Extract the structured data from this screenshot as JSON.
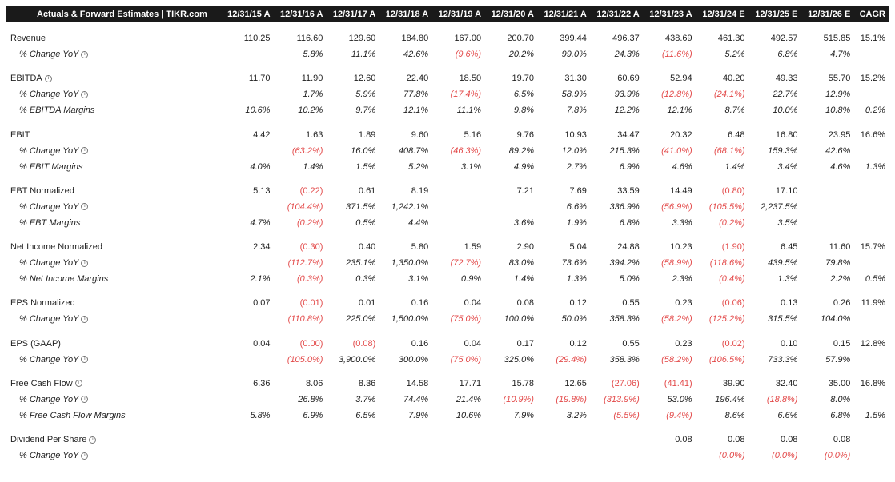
{
  "header": {
    "title": "Actuals & Forward Estimates | TIKR.com",
    "periods": [
      "12/31/15 A",
      "12/31/16 A",
      "12/31/17 A",
      "12/31/18 A",
      "12/31/19 A",
      "12/31/20 A",
      "12/31/21 A",
      "12/31/22 A",
      "12/31/23 A",
      "12/31/24 E",
      "12/31/25 E",
      "12/31/26 E"
    ],
    "cagr": "CAGR"
  },
  "rows": [
    {
      "label": "Revenue",
      "sub": false,
      "info": false,
      "groupStart": true,
      "values": [
        "110.25",
        "116.60",
        "129.60",
        "184.80",
        "167.00",
        "200.70",
        "399.44",
        "496.37",
        "438.69",
        "461.30",
        "492.57",
        "515.85"
      ],
      "cagr": "15.1%"
    },
    {
      "label": "% Change YoY",
      "sub": true,
      "info": true,
      "values": [
        "",
        "5.8%",
        "11.1%",
        "42.6%",
        "(9.6%)",
        "20.2%",
        "99.0%",
        "24.3%",
        "(11.6%)",
        "5.2%",
        "6.8%",
        "4.7%"
      ],
      "cagr": ""
    },
    {
      "label": "EBITDA",
      "sub": false,
      "info": true,
      "groupStart": true,
      "values": [
        "11.70",
        "11.90",
        "12.60",
        "22.40",
        "18.50",
        "19.70",
        "31.30",
        "60.69",
        "52.94",
        "40.20",
        "49.33",
        "55.70"
      ],
      "cagr": "15.2%"
    },
    {
      "label": "% Change YoY",
      "sub": true,
      "info": true,
      "values": [
        "",
        "1.7%",
        "5.9%",
        "77.8%",
        "(17.4%)",
        "6.5%",
        "58.9%",
        "93.9%",
        "(12.8%)",
        "(24.1%)",
        "22.7%",
        "12.9%"
      ],
      "cagr": ""
    },
    {
      "label": "% EBITDA Margins",
      "sub": true,
      "info": false,
      "values": [
        "10.6%",
        "10.2%",
        "9.7%",
        "12.1%",
        "11.1%",
        "9.8%",
        "7.8%",
        "12.2%",
        "12.1%",
        "8.7%",
        "10.0%",
        "10.8%"
      ],
      "cagr": "0.2%"
    },
    {
      "label": "EBIT",
      "sub": false,
      "info": false,
      "groupStart": true,
      "values": [
        "4.42",
        "1.63",
        "1.89",
        "9.60",
        "5.16",
        "9.76",
        "10.93",
        "34.47",
        "20.32",
        "6.48",
        "16.80",
        "23.95"
      ],
      "cagr": "16.6%"
    },
    {
      "label": "% Change YoY",
      "sub": true,
      "info": true,
      "values": [
        "",
        "(63.2%)",
        "16.0%",
        "408.7%",
        "(46.3%)",
        "89.2%",
        "12.0%",
        "215.3%",
        "(41.0%)",
        "(68.1%)",
        "159.3%",
        "42.6%"
      ],
      "cagr": ""
    },
    {
      "label": "% EBIT Margins",
      "sub": true,
      "info": false,
      "values": [
        "4.0%",
        "1.4%",
        "1.5%",
        "5.2%",
        "3.1%",
        "4.9%",
        "2.7%",
        "6.9%",
        "4.6%",
        "1.4%",
        "3.4%",
        "4.6%"
      ],
      "cagr": "1.3%"
    },
    {
      "label": "EBT Normalized",
      "sub": false,
      "info": false,
      "groupStart": true,
      "values": [
        "5.13",
        "(0.22)",
        "0.61",
        "8.19",
        "",
        "7.21",
        "7.69",
        "33.59",
        "14.49",
        "(0.80)",
        "17.10",
        ""
      ],
      "cagr": ""
    },
    {
      "label": "% Change YoY",
      "sub": true,
      "info": true,
      "values": [
        "",
        "(104.4%)",
        "371.5%",
        "1,242.1%",
        "",
        "",
        "6.6%",
        "336.9%",
        "(56.9%)",
        "(105.5%)",
        "2,237.5%",
        ""
      ],
      "cagr": ""
    },
    {
      "label": "% EBT Margins",
      "sub": true,
      "info": false,
      "values": [
        "4.7%",
        "(0.2%)",
        "0.5%",
        "4.4%",
        "",
        "3.6%",
        "1.9%",
        "6.8%",
        "3.3%",
        "(0.2%)",
        "3.5%",
        ""
      ],
      "cagr": ""
    },
    {
      "label": "Net Income Normalized",
      "sub": false,
      "info": false,
      "groupStart": true,
      "values": [
        "2.34",
        "(0.30)",
        "0.40",
        "5.80",
        "1.59",
        "2.90",
        "5.04",
        "24.88",
        "10.23",
        "(1.90)",
        "6.45",
        "11.60"
      ],
      "cagr": "15.7%"
    },
    {
      "label": "% Change YoY",
      "sub": true,
      "info": true,
      "values": [
        "",
        "(112.7%)",
        "235.1%",
        "1,350.0%",
        "(72.7%)",
        "83.0%",
        "73.6%",
        "394.2%",
        "(58.9%)",
        "(118.6%)",
        "439.5%",
        "79.8%"
      ],
      "cagr": ""
    },
    {
      "label": "% Net Income Margins",
      "sub": true,
      "info": false,
      "values": [
        "2.1%",
        "(0.3%)",
        "0.3%",
        "3.1%",
        "0.9%",
        "1.4%",
        "1.3%",
        "5.0%",
        "2.3%",
        "(0.4%)",
        "1.3%",
        "2.2%"
      ],
      "cagr": "0.5%"
    },
    {
      "label": "EPS Normalized",
      "sub": false,
      "info": false,
      "groupStart": true,
      "values": [
        "0.07",
        "(0.01)",
        "0.01",
        "0.16",
        "0.04",
        "0.08",
        "0.12",
        "0.55",
        "0.23",
        "(0.06)",
        "0.13",
        "0.26"
      ],
      "cagr": "11.9%"
    },
    {
      "label": "% Change YoY",
      "sub": true,
      "info": true,
      "values": [
        "",
        "(110.8%)",
        "225.0%",
        "1,500.0%",
        "(75.0%)",
        "100.0%",
        "50.0%",
        "358.3%",
        "(58.2%)",
        "(125.2%)",
        "315.5%",
        "104.0%"
      ],
      "cagr": ""
    },
    {
      "label": "EPS (GAAP)",
      "sub": false,
      "info": false,
      "groupStart": true,
      "values": [
        "0.04",
        "(0.00)",
        "(0.08)",
        "0.16",
        "0.04",
        "0.17",
        "0.12",
        "0.55",
        "0.23",
        "(0.02)",
        "0.10",
        "0.15"
      ],
      "cagr": "12.8%"
    },
    {
      "label": "% Change YoY",
      "sub": true,
      "info": true,
      "values": [
        "",
        "(105.0%)",
        "3,900.0%",
        "300.0%",
        "(75.0%)",
        "325.0%",
        "(29.4%)",
        "358.3%",
        "(58.2%)",
        "(106.5%)",
        "733.3%",
        "57.9%"
      ],
      "cagr": ""
    },
    {
      "label": "Free Cash Flow",
      "sub": false,
      "info": true,
      "groupStart": true,
      "values": [
        "6.36",
        "8.06",
        "8.36",
        "14.58",
        "17.71",
        "15.78",
        "12.65",
        "(27.06)",
        "(41.41)",
        "39.90",
        "32.40",
        "35.00"
      ],
      "cagr": "16.8%"
    },
    {
      "label": "% Change YoY",
      "sub": true,
      "info": true,
      "values": [
        "",
        "26.8%",
        "3.7%",
        "74.4%",
        "21.4%",
        "(10.9%)",
        "(19.8%)",
        "(313.9%)",
        "53.0%",
        "196.4%",
        "(18.8%)",
        "8.0%"
      ],
      "cagr": ""
    },
    {
      "label": "% Free Cash Flow Margins",
      "sub": true,
      "info": false,
      "values": [
        "5.8%",
        "6.9%",
        "6.5%",
        "7.9%",
        "10.6%",
        "7.9%",
        "3.2%",
        "(5.5%)",
        "(9.4%)",
        "8.6%",
        "6.6%",
        "6.8%"
      ],
      "cagr": "1.5%"
    },
    {
      "label": "Dividend Per Share",
      "sub": false,
      "info": true,
      "groupStart": true,
      "values": [
        "",
        "",
        "",
        "",
        "",
        "",
        "",
        "",
        "0.08",
        "0.08",
        "0.08",
        "0.08"
      ],
      "cagr": ""
    },
    {
      "label": "% Change YoY",
      "sub": true,
      "info": true,
      "values": [
        "",
        "",
        "",
        "",
        "",
        "",
        "",
        "",
        "",
        "(0.0%)",
        "(0.0%)",
        "(0.0%)"
      ],
      "cagr": ""
    }
  ],
  "colors": {
    "header_bg": "#1a1a1a",
    "header_text": "#ffffff",
    "negative": "#e34a4a",
    "text": "#222222"
  }
}
